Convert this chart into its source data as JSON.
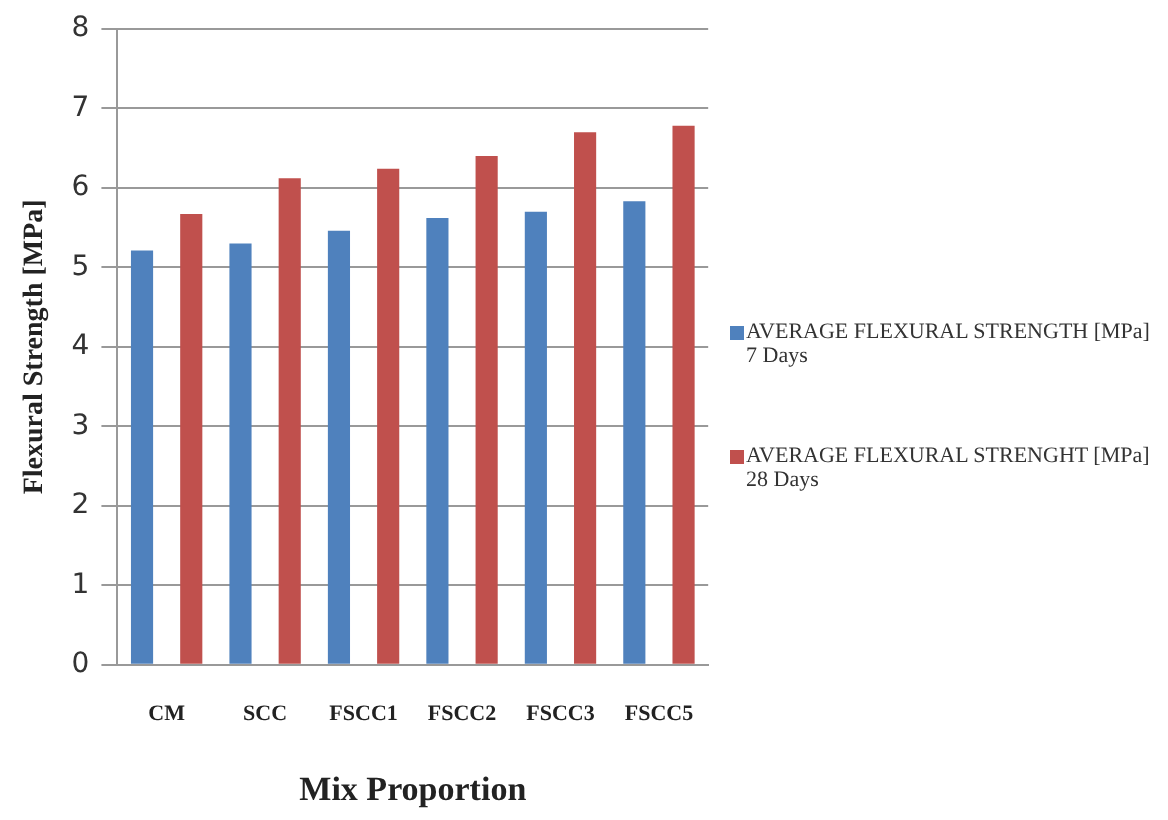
{
  "chart_data": {
    "type": "bar",
    "xlabel": "Mix Proportion",
    "ylabel": "Flexural Strength [MPa]",
    "categories": [
      "CM",
      "SCC",
      "FSCC1",
      "FSCC2",
      "FSCC3",
      "FSCC5"
    ],
    "series": [
      {
        "name": "AVERAGE FLEXURAL STRENGTH [MPa] 7 Days",
        "color": "#4f81bd",
        "values": [
          5.21,
          5.3,
          5.46,
          5.62,
          5.7,
          5.83
        ]
      },
      {
        "name": "AVERAGE FLEXURAL STRENGHT [MPa] 28 Days",
        "color": "#c0504d",
        "values": [
          5.67,
          6.12,
          6.24,
          6.4,
          6.7,
          6.78
        ]
      }
    ],
    "ylim": [
      0,
      8
    ],
    "yticks": [
      0,
      1,
      2,
      3,
      4,
      5,
      6,
      7,
      8
    ],
    "grid": "y",
    "legend": "right"
  }
}
